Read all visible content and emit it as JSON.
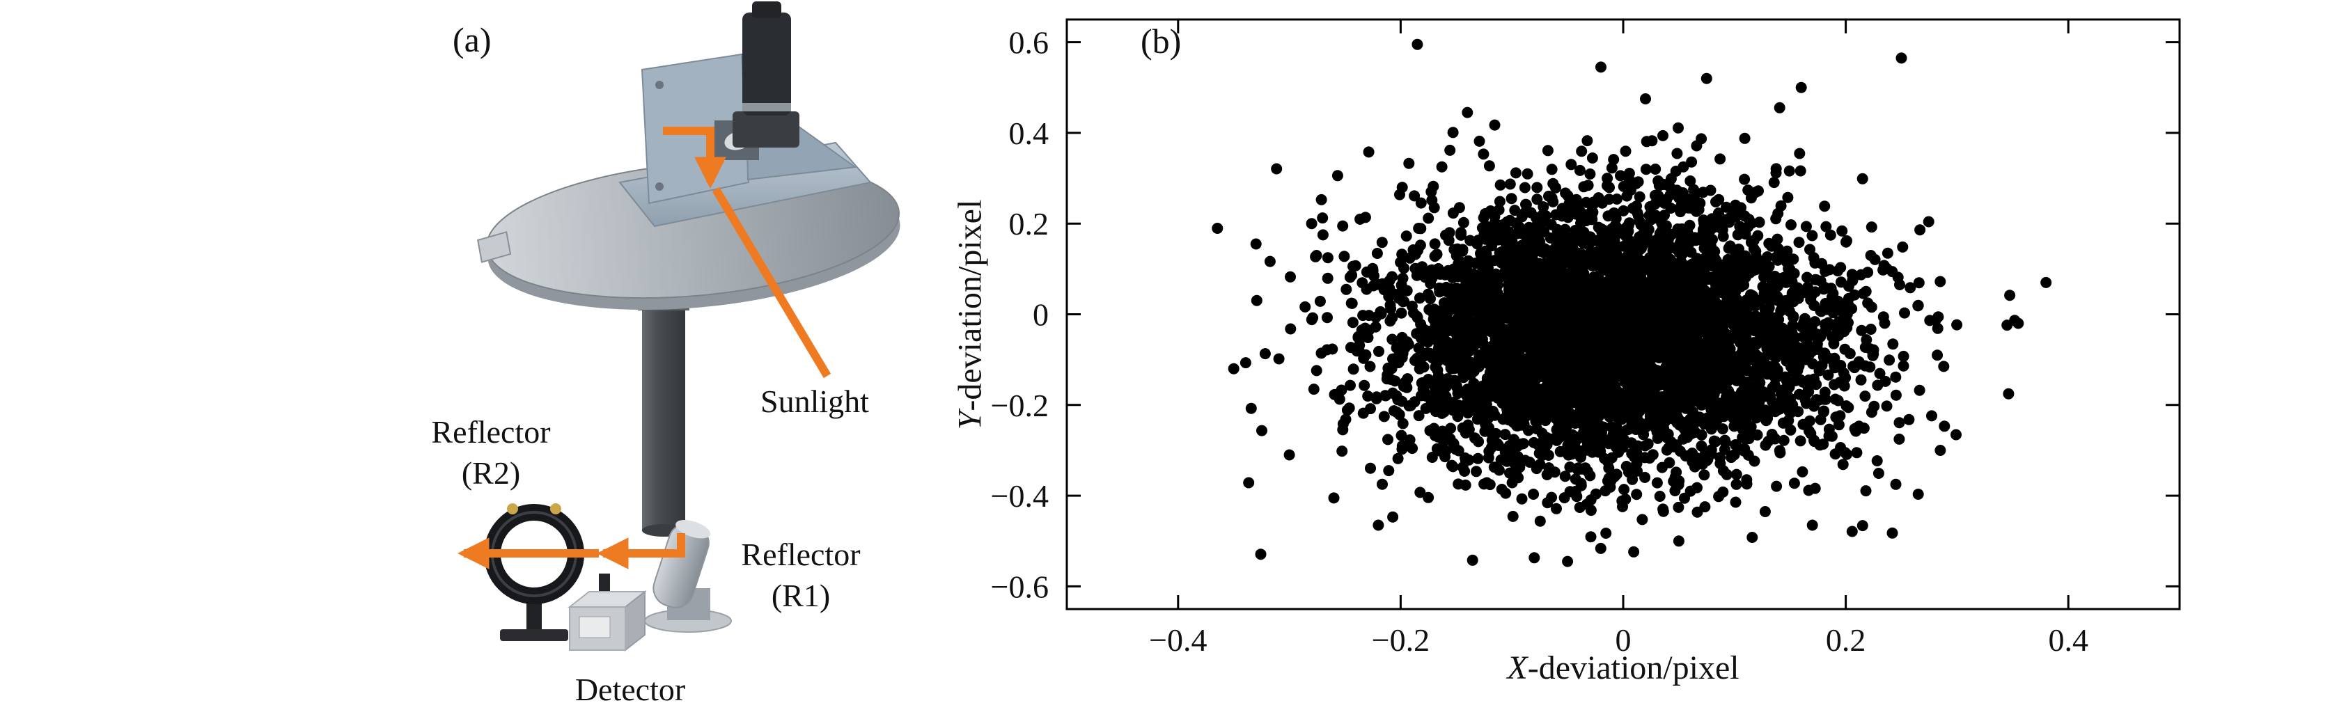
{
  "figure": {
    "panel_a_label": "(a)",
    "panel_b_label": "(b)",
    "background": "#ffffff"
  },
  "diagram": {
    "labels": {
      "sunlight": "Sunlight",
      "reflector_r2": [
        "Reflector",
        "(R2)"
      ],
      "reflector_r1": [
        "Reflector",
        "(R1)"
      ],
      "detector": "Detector"
    },
    "colors": {
      "beam_orange": "#ee7b22",
      "platform_gray": "#aab1b7",
      "tube_dark": "#4a4e53",
      "bracket_steel": "#a3b2c0",
      "ring_black": "#17181b"
    }
  },
  "chart_data": {
    "type": "scatter",
    "title": "",
    "xlabel": "X-deviation/pixel",
    "xlabel_var": "X",
    "xlabel_rest": "-deviation/pixel",
    "ylabel": "Y-deviation/pixel",
    "ylabel_var": "Y",
    "ylabel_rest": "-deviation/pixel",
    "xlim": [
      -0.5,
      0.5
    ],
    "ylim": [
      -0.65,
      0.65
    ],
    "x_ticks": [
      -0.4,
      -0.2,
      0,
      0.2,
      0.4
    ],
    "x_tick_labels": [
      "−0.4",
      "−0.2",
      "0",
      "0.2",
      "0.4"
    ],
    "y_ticks": [
      -0.6,
      -0.4,
      -0.2,
      0,
      0.2,
      0.4,
      0.6
    ],
    "y_tick_labels": [
      "−0.6",
      "−0.4",
      "−0.2",
      "0",
      "0.2",
      "0.4",
      "0.6"
    ],
    "grid": false,
    "legend": null,
    "marker_color": "#000000",
    "marker_radius_px": 8,
    "cluster": {
      "description": "Dense Gaussian-like cloud of tracking deviations centered near the origin, nearly solid black in the core",
      "n_points": 4500,
      "mean_x": -0.01,
      "mean_y": -0.045,
      "std_x": 0.105,
      "std_y": 0.15,
      "seed": 42
    },
    "outliers": [
      [
        -0.185,
        0.595
      ],
      [
        0.25,
        0.565
      ],
      [
        -0.02,
        0.545
      ],
      [
        0.075,
        0.52
      ],
      [
        0.16,
        0.5
      ],
      [
        0.02,
        0.475
      ],
      [
        -0.14,
        0.445
      ],
      [
        -0.28,
        0.2
      ],
      [
        -0.33,
        0.155
      ],
      [
        0.38,
        0.07
      ],
      [
        0.355,
        -0.02
      ],
      [
        -0.35,
        -0.12
      ],
      [
        -0.3,
        -0.31
      ],
      [
        -0.26,
        -0.405
      ],
      [
        -0.22,
        -0.465
      ],
      [
        -0.05,
        -0.545
      ],
      [
        0.05,
        -0.5
      ],
      [
        0.17,
        -0.465
      ],
      [
        0.245,
        -0.375
      ],
      [
        0.285,
        -0.3
      ]
    ]
  }
}
